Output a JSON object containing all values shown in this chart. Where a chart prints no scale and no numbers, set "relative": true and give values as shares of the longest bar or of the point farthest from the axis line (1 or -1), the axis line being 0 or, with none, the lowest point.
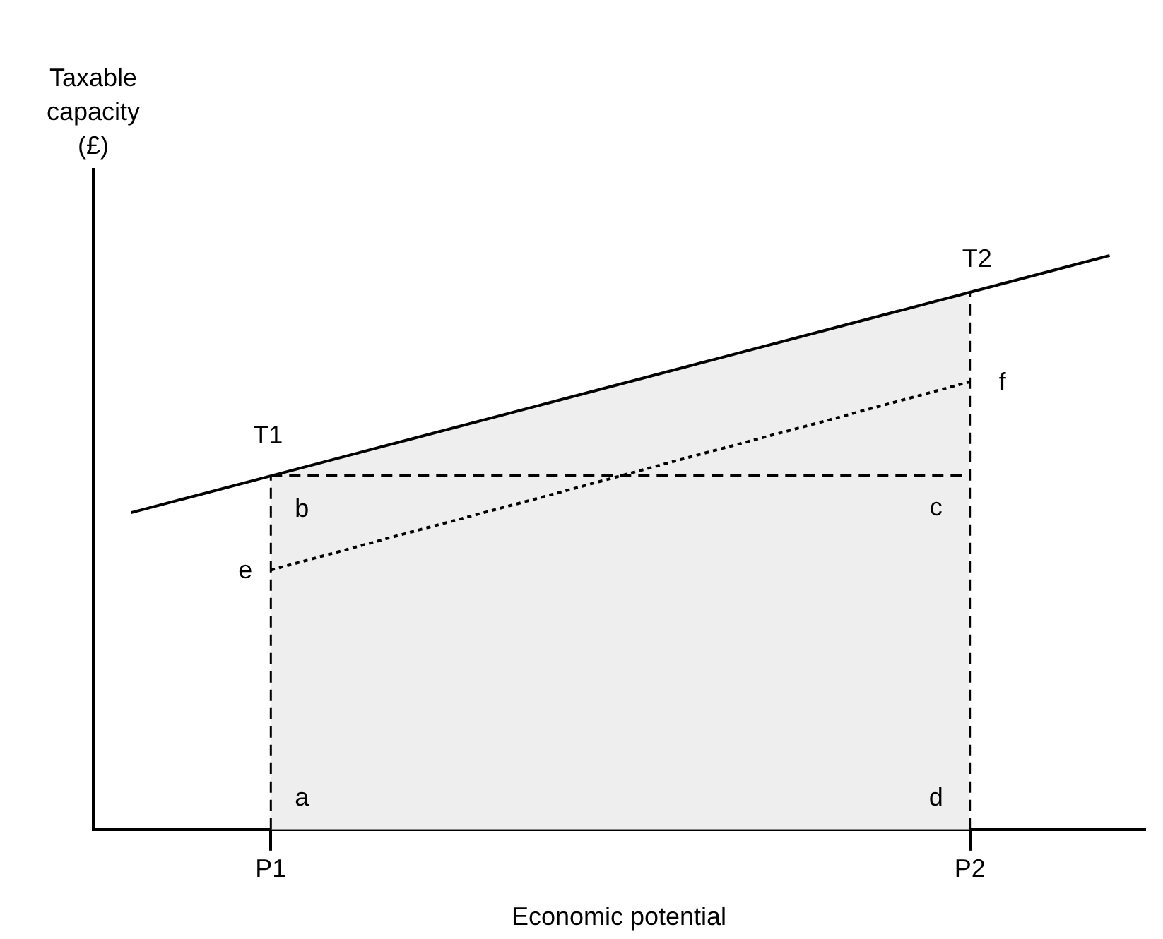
{
  "chart_data": {
    "type": "line",
    "relative": true,
    "xlabel": "Economic potential",
    "ylabel": "Taxable capacity (£)",
    "categories": [
      null,
      "P1",
      null,
      null,
      null,
      null,
      "P2",
      null
    ],
    "legend": false,
    "marker": "none",
    "series": [
      {
        "type": "area",
        "color": "#eeeeee",
        "line_style": "dashed",
        "values": [
          null,
          0.616,
          0.68,
          0.744,
          0.808,
          0.872,
          0.936,
          null
        ]
      },
      {
        "color": "#000000",
        "line_style": "solid",
        "values": [
          0.552,
          0.616,
          0.68,
          0.744,
          0.808,
          0.872,
          0.936,
          1
        ]
      },
      {
        "color": "#000000",
        "line_style": "dotted",
        "values": [
          null,
          0.452,
          0.518,
          0.583,
          0.649,
          0.714,
          0.78,
          null
        ]
      },
      {
        "color": "#000000",
        "line_style": "dashed",
        "values": [
          null,
          0.616,
          0.616,
          0.616,
          0.616,
          0.616,
          0.616,
          null
        ]
      }
    ],
    "annotations": [
      {
        "text": "T1",
        "x": "P1",
        "y": 0.616
      },
      {
        "text": "T2",
        "x": "P2",
        "y": 0.936
      },
      {
        "text": "a",
        "x": "P1",
        "y": 0
      },
      {
        "text": "b",
        "x": "P1",
        "y": 0.616
      },
      {
        "text": "c",
        "x": "P2",
        "y": 0.616
      },
      {
        "text": "d",
        "x": "P2",
        "y": 0
      },
      {
        "text": "e",
        "x": "P1",
        "y": 0.452
      },
      {
        "text": "f",
        "x": "P2",
        "y": 0.78
      }
    ]
  }
}
